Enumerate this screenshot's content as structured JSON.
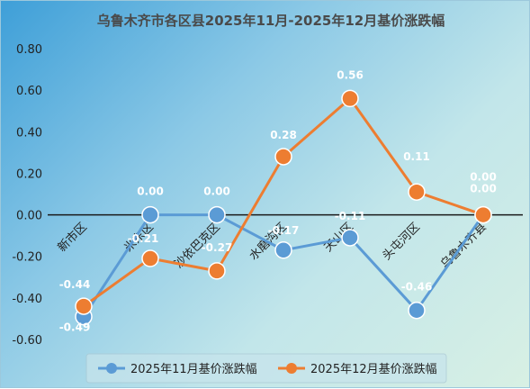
{
  "chart_data": {
    "type": "line",
    "title": "乌鲁木齐市各区县2025年11月-2025年12月基价涨跌幅",
    "categories": [
      "新市区",
      "米东区",
      "沙依巴克区",
      "水磨沟区",
      "天山区",
      "头屯河区",
      "乌鲁木齐县"
    ],
    "series": [
      {
        "name": "2025年11月基价涨跌幅",
        "color": "#5b9bd5",
        "values": [
          -0.49,
          0.0,
          0.0,
          -0.17,
          -0.11,
          -0.46,
          0.0
        ],
        "labels": [
          "-0.49",
          "0.00",
          "0.00",
          "-0.17",
          "-0.11",
          "-0.46",
          "0.00"
        ]
      },
      {
        "name": "2025年12月基价涨跌幅",
        "color": "#ed7d31",
        "values": [
          -0.44,
          -0.21,
          -0.27,
          0.28,
          0.56,
          0.11,
          0.0
        ],
        "labels": [
          "-0.44",
          "-0.21",
          "-0.27",
          "0.28",
          "0.56",
          "0.11",
          "0.00"
        ]
      }
    ],
    "ylim": [
      -0.6,
      0.8
    ],
    "yticks": [
      "-0.60",
      "-0.40",
      "-0.20",
      "0.00",
      "0.20",
      "0.40",
      "0.60",
      "0.80"
    ],
    "grid": false,
    "legend": "bottom"
  }
}
